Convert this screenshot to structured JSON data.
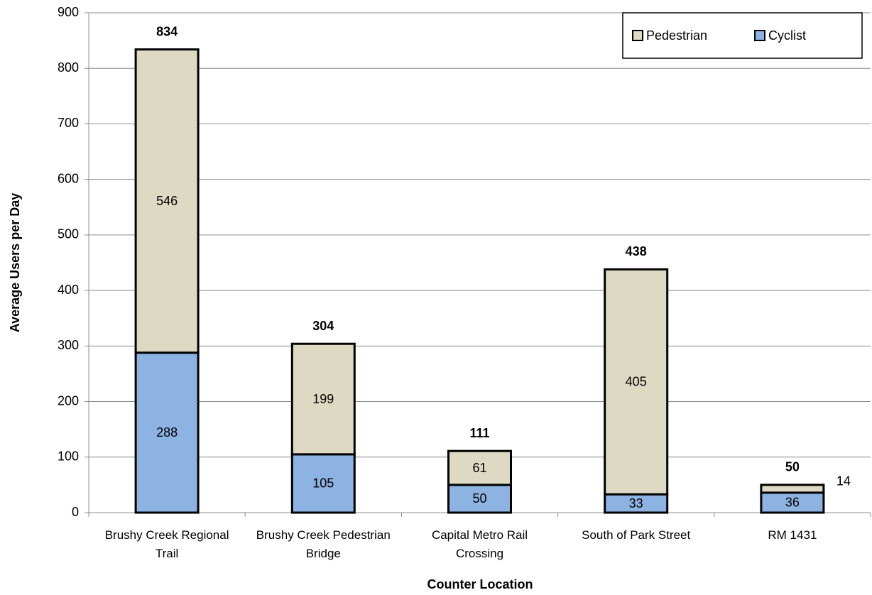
{
  "chart_data": {
    "type": "stacked-bar",
    "x_label": "Counter Location",
    "y_label": "Average Users per Day",
    "categories": [
      "Brushy Creek Regional Trail",
      "Brushy Creek Pedestrian Bridge",
      "Capital Metro Rail Crossing",
      "South of Park Street",
      "RM 1431"
    ],
    "series": [
      {
        "name": "Cyclist",
        "color": "#8db3e2",
        "values": [
          288,
          105,
          50,
          33,
          36
        ]
      },
      {
        "name": "Pedestrian",
        "color": "#ddd9c3",
        "values": [
          546,
          199,
          61,
          405,
          14
        ]
      }
    ],
    "totals": [
      834,
      304,
      111,
      438,
      50
    ],
    "ylim": [
      0,
      900
    ],
    "yticks": [
      0,
      100,
      200,
      300,
      400,
      500,
      600,
      700,
      800,
      900
    ],
    "grid": true,
    "legend_position": "top-right"
  }
}
